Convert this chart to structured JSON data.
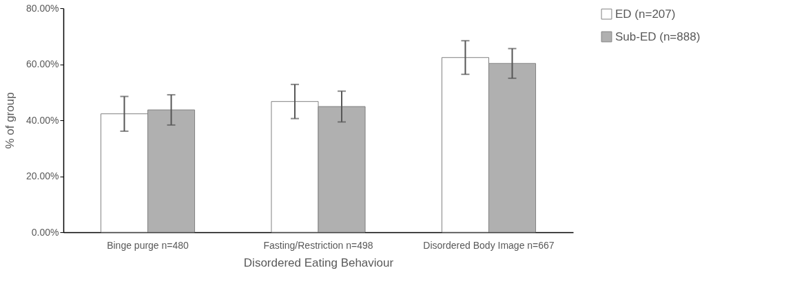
{
  "chart_data": {
    "type": "bar",
    "xlabel": "Disordered Eating Behaviour",
    "ylabel": "% of  group",
    "categories": [
      "Binge purge n=480",
      "Fasting/Restriction n=498",
      "Disordered Body Image n=667"
    ],
    "series": [
      {
        "name": "ED (n=207)",
        "color": "#ffffff",
        "values": [
          42.3,
          46.7,
          62.4
        ],
        "errors": [
          6.2,
          6.1,
          6.0
        ]
      },
      {
        "name": "Sub-ED (n=888)",
        "color": "#b0b0b0",
        "values": [
          43.7,
          44.9,
          60.3
        ],
        "errors": [
          5.4,
          5.5,
          5.3
        ]
      }
    ],
    "ylim": [
      0,
      80
    ],
    "yticks": [
      {
        "value": 0,
        "label": "0.00%"
      },
      {
        "value": 20,
        "label": "20.00%"
      },
      {
        "value": 40,
        "label": "40.00%"
      },
      {
        "value": 60,
        "label": "60.00%"
      },
      {
        "value": 80,
        "label": "80.00%"
      }
    ],
    "grid": false,
    "legend": "right"
  }
}
